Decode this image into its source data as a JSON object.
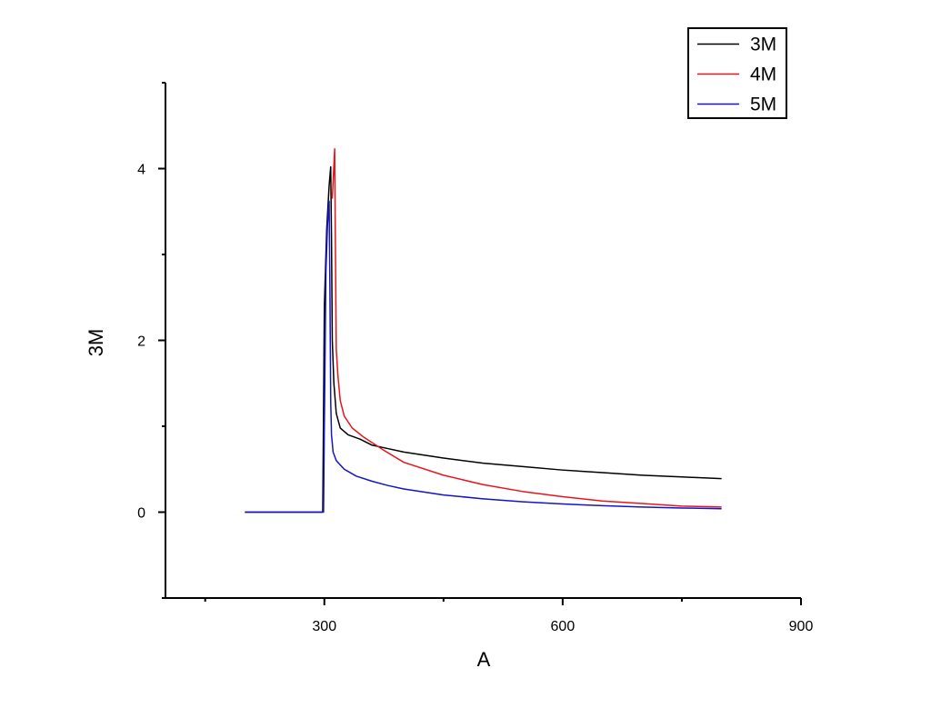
{
  "chart_data": {
    "type": "line",
    "title": "",
    "xlabel": "A",
    "ylabel": "3M",
    "xlim": [
      100,
      900
    ],
    "ylim": [
      -1,
      5
    ],
    "x_major_ticks": [
      300,
      600,
      900
    ],
    "x_minor_ticks": [
      150,
      450,
      750
    ],
    "y_major_ticks": [
      0,
      2,
      4
    ],
    "y_minor_ticks": [
      -1,
      1,
      3,
      5
    ],
    "x_tick_labels": [
      "300",
      "600",
      "900"
    ],
    "y_tick_labels": [
      "0",
      "2",
      "4"
    ],
    "grid": false,
    "legend_position": "top-right",
    "series": [
      {
        "name": "3M",
        "color": "#000000",
        "points": [
          [
            200,
            0
          ],
          [
            298,
            0
          ],
          [
            300,
            2.4
          ],
          [
            303,
            3.3
          ],
          [
            306,
            3.8
          ],
          [
            308,
            4.02
          ],
          [
            309,
            3.2
          ],
          [
            310,
            2.0
          ],
          [
            312,
            1.5
          ],
          [
            315,
            1.15
          ],
          [
            320,
            0.98
          ],
          [
            330,
            0.9
          ],
          [
            345,
            0.85
          ],
          [
            360,
            0.78
          ],
          [
            380,
            0.74
          ],
          [
            400,
            0.7
          ],
          [
            450,
            0.63
          ],
          [
            500,
            0.57
          ],
          [
            550,
            0.53
          ],
          [
            600,
            0.49
          ],
          [
            650,
            0.46
          ],
          [
            700,
            0.43
          ],
          [
            750,
            0.41
          ],
          [
            800,
            0.39
          ]
        ]
      },
      {
        "name": "4M",
        "color": "#e8141c",
        "points": [
          [
            310,
            3.65
          ],
          [
            313,
            4.23
          ],
          [
            314,
            3.0
          ],
          [
            315,
            1.9
          ],
          [
            317,
            1.6
          ],
          [
            320,
            1.3
          ],
          [
            325,
            1.12
          ],
          [
            335,
            0.98
          ],
          [
            350,
            0.87
          ],
          [
            375,
            0.72
          ],
          [
            400,
            0.58
          ],
          [
            450,
            0.43
          ],
          [
            500,
            0.32
          ],
          [
            550,
            0.24
          ],
          [
            600,
            0.18
          ],
          [
            650,
            0.13
          ],
          [
            700,
            0.1
          ],
          [
            750,
            0.07
          ],
          [
            800,
            0.06
          ]
        ]
      },
      {
        "name": "5M",
        "color": "#1414c8",
        "points": [
          [
            200,
            0
          ],
          [
            299,
            0
          ],
          [
            300,
            1.0
          ],
          [
            302,
            2.8
          ],
          [
            304,
            3.35
          ],
          [
            306,
            3.62
          ],
          [
            307,
            2.6
          ],
          [
            308,
            1.3
          ],
          [
            309,
            0.9
          ],
          [
            311,
            0.7
          ],
          [
            315,
            0.6
          ],
          [
            325,
            0.5
          ],
          [
            340,
            0.42
          ],
          [
            360,
            0.36
          ],
          [
            380,
            0.31
          ],
          [
            400,
            0.27
          ],
          [
            450,
            0.2
          ],
          [
            500,
            0.155
          ],
          [
            550,
            0.12
          ],
          [
            600,
            0.095
          ],
          [
            650,
            0.075
          ],
          [
            700,
            0.06
          ],
          [
            750,
            0.048
          ],
          [
            800,
            0.04
          ]
        ]
      }
    ]
  }
}
